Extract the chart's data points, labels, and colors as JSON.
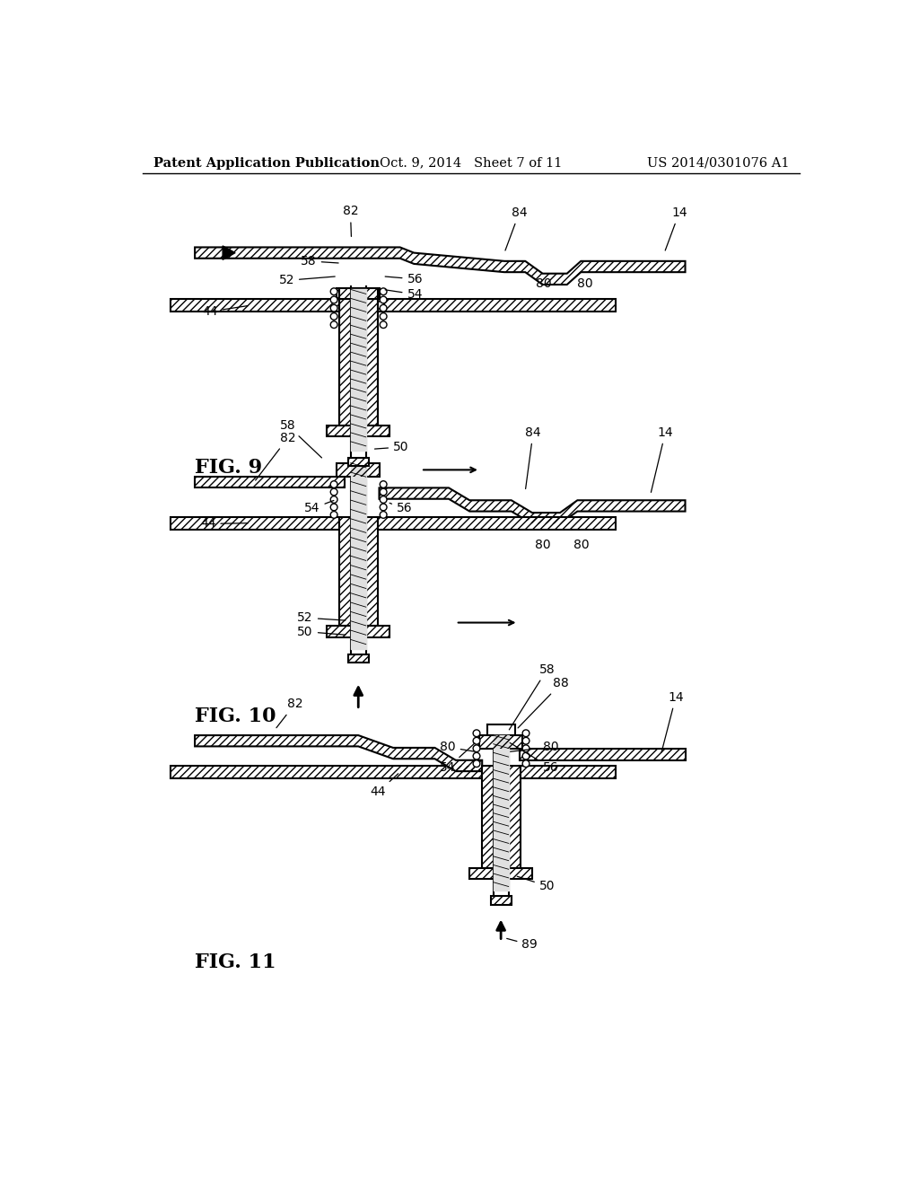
{
  "bg_color": "#ffffff",
  "lc": "#000000",
  "header_left": "Patent Application Publication",
  "header_mid": "Oct. 9, 2014   Sheet 7 of 11",
  "header_right": "US 2014/0301076 A1",
  "fig9_label": "FIG. 9",
  "fig10_label": "FIG. 10",
  "fig11_label": "FIG. 11",
  "fs_header": 10.5,
  "fs_fig": 16,
  "fs_ref": 10
}
